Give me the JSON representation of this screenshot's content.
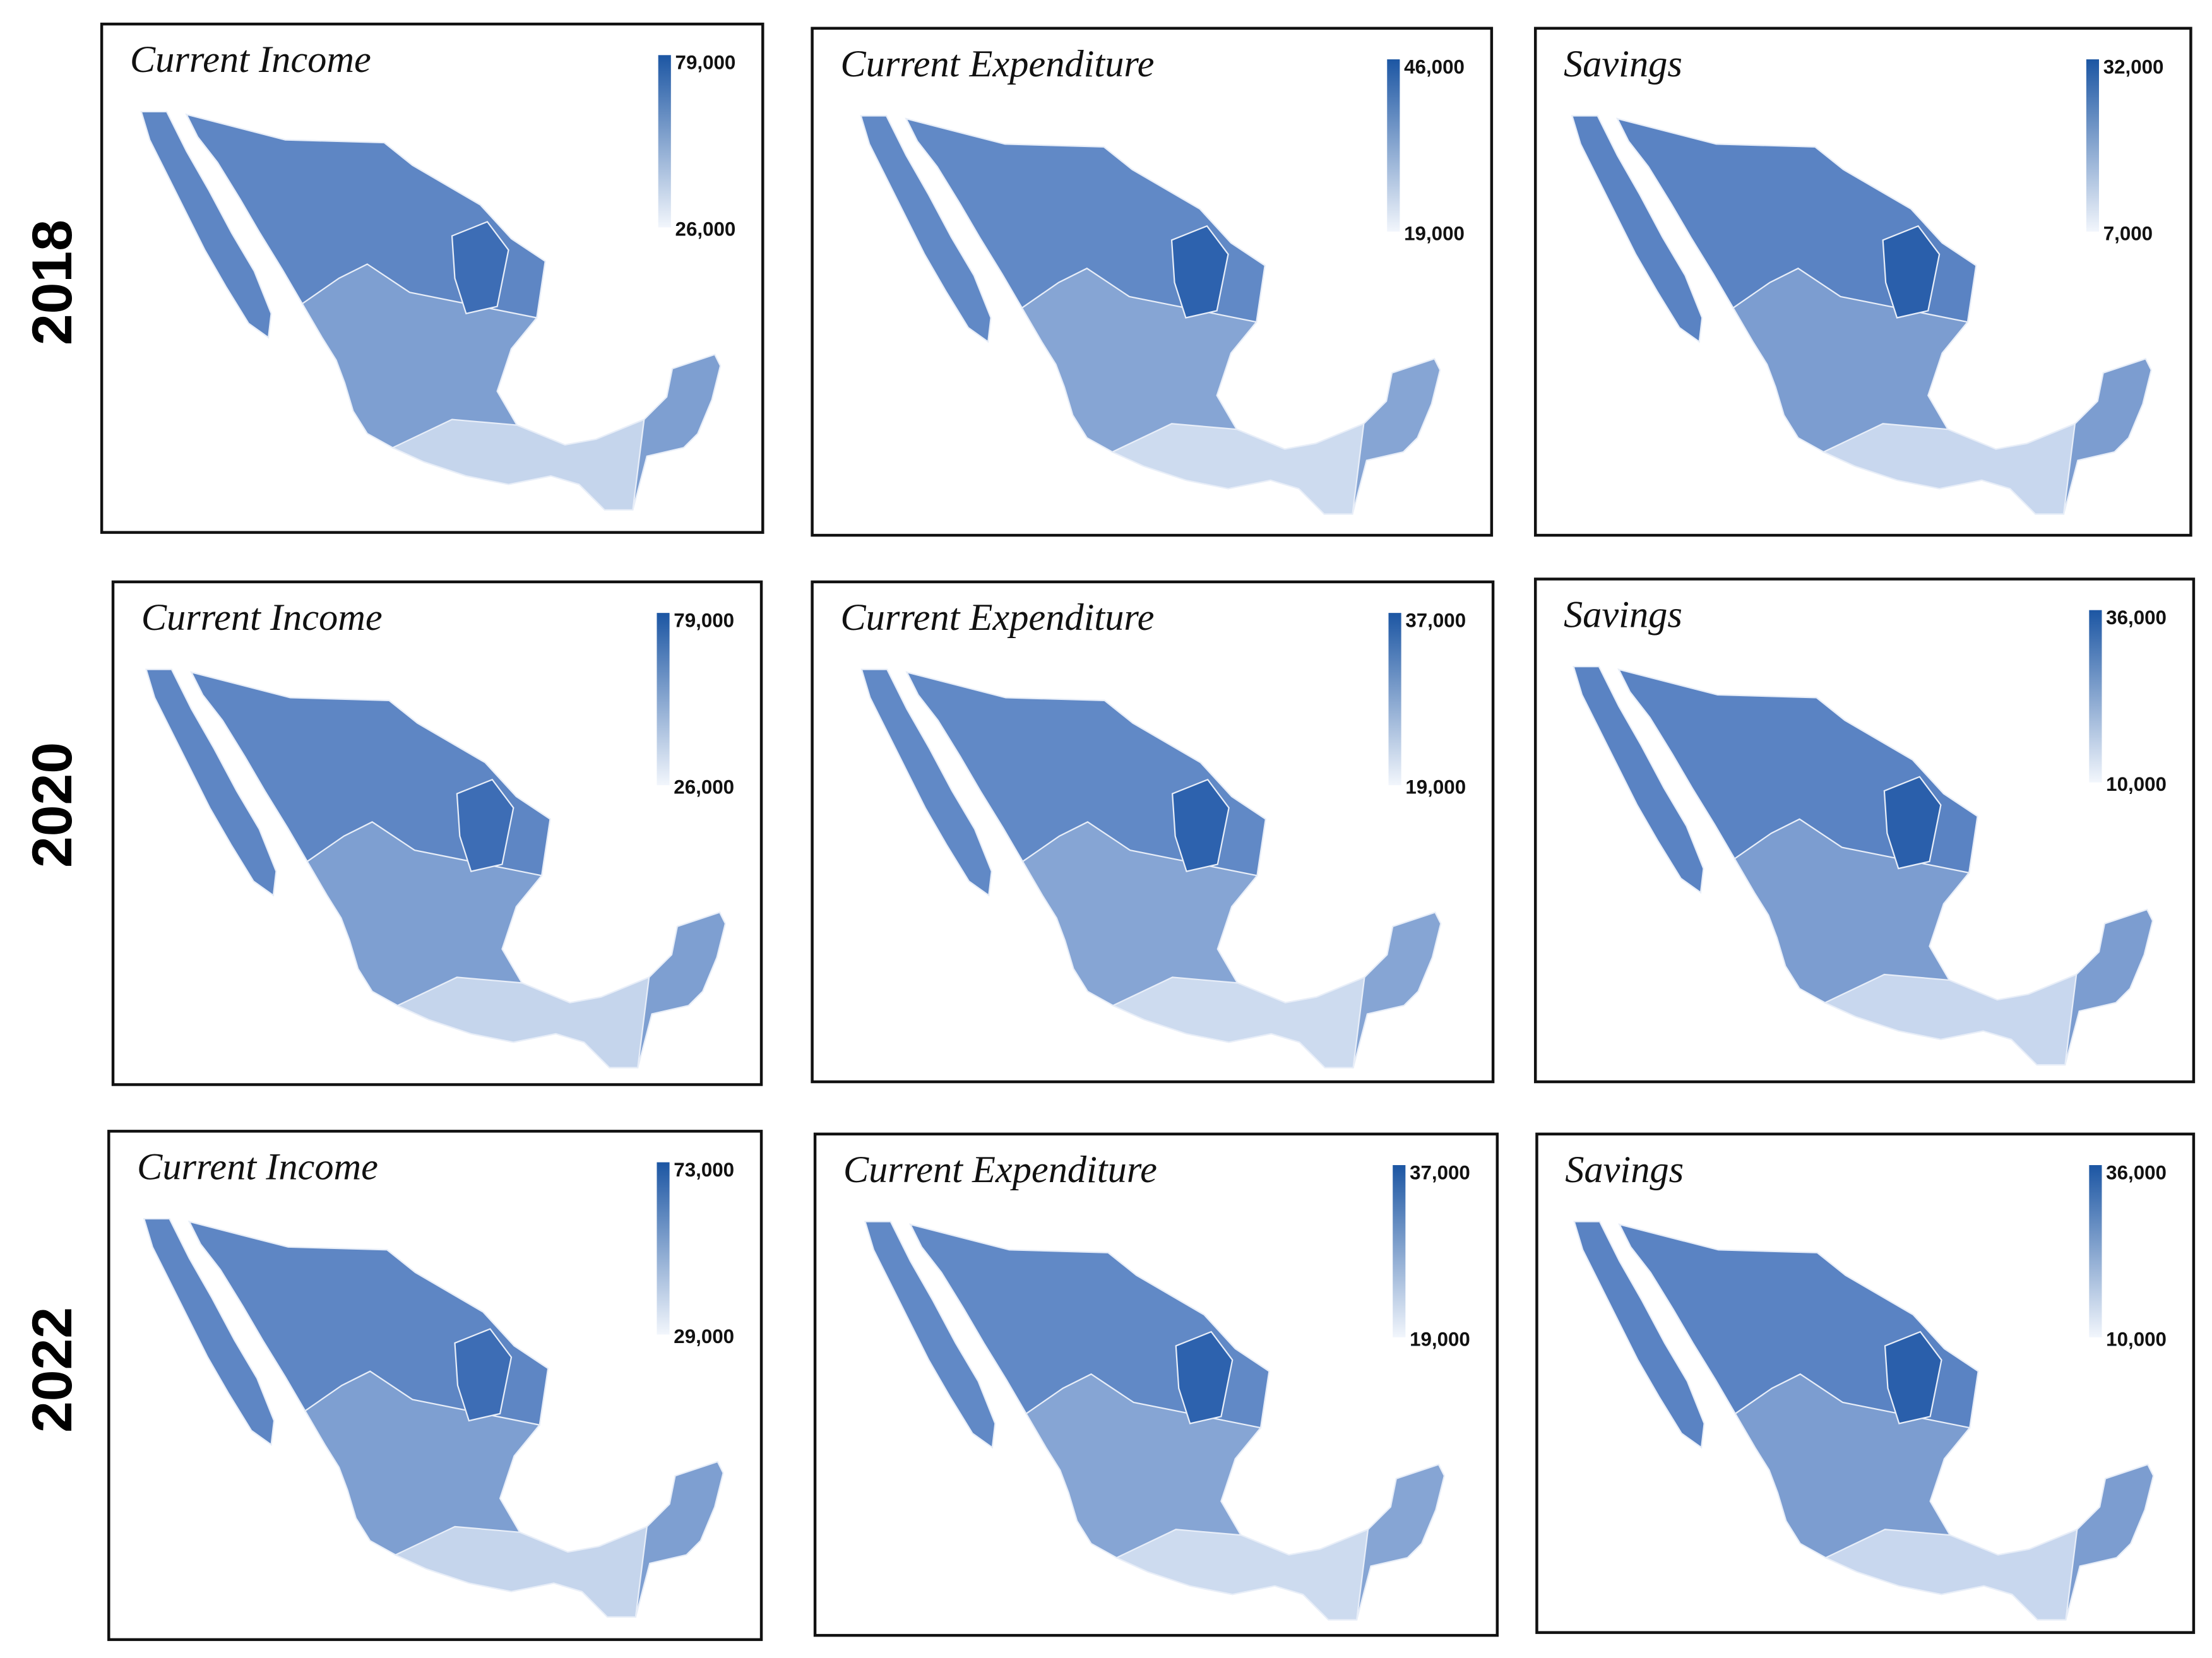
{
  "rows": [
    {
      "year": "2018",
      "panels": [
        {
          "title": "Current Income",
          "legend": {
            "max": "79,000",
            "min": "26,000"
          }
        },
        {
          "title": "Current Expenditure",
          "legend": {
            "max": "46,000",
            "min": "19,000"
          }
        },
        {
          "title": "Savings",
          "legend": {
            "max": "32,000",
            "min": "7,000"
          }
        }
      ]
    },
    {
      "year": "2020",
      "panels": [
        {
          "title": "Current Income",
          "legend": {
            "max": "79,000",
            "min": "26,000"
          }
        },
        {
          "title": "Current Expenditure",
          "legend": {
            "max": "37,000",
            "min": "19,000"
          }
        },
        {
          "title": "Savings",
          "legend": {
            "max": "36,000",
            "min": "10,000"
          }
        }
      ]
    },
    {
      "year": "2022",
      "panels": [
        {
          "title": "Current Income",
          "legend": {
            "max": "73,000",
            "min": "29,000"
          }
        },
        {
          "title": "Current Expenditure",
          "legend": {
            "max": "37,000",
            "min": "19,000"
          }
        },
        {
          "title": "Savings",
          "legend": {
            "max": "36,000",
            "min": "10,000"
          }
        }
      ]
    }
  ]
}
